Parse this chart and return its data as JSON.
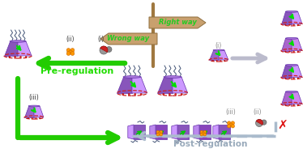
{
  "bg_color": "#ffffff",
  "signpost_color": "#c8a06e",
  "signpost_text_top": "Right way",
  "signpost_text_bot": "Wrong way",
  "signpost_text_color": "#22cc22",
  "pre_reg_text": "Pre-regulation",
  "pre_reg_color": "#22dd00",
  "post_reg_text": "Post-regulation",
  "post_reg_color": "#99aabb",
  "label_i": "(i)",
  "label_ii": "(ii)",
  "label_iii": "(iii)",
  "arrow_green_color": "#22cc00",
  "arrow_gray_color": "#aabbcc",
  "orange_color": "#ff9900",
  "red_x_color": "#dd1111",
  "pillar_dark": "#8855bb",
  "pillar_mid": "#aa77dd",
  "pillar_light": "#cc99ff",
  "chain_color": "#445577",
  "rim_color": "#cc2222",
  "green_arrow_fill": "#00dd00"
}
